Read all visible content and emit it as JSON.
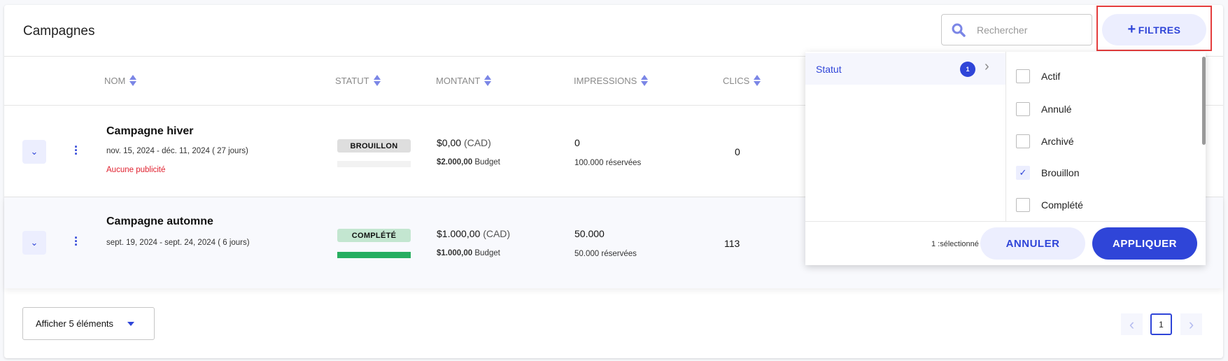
{
  "header": {
    "title": "Campagnes",
    "search_placeholder": "Rechercher",
    "filters_label": "FILTRES"
  },
  "columns": [
    "NOM",
    "STATUT",
    "MONTANT",
    "IMPRESSIONS",
    "CLICS"
  ],
  "rows": [
    {
      "name": "Campagne hiver",
      "dates": "nov. 15, 2024 - déc. 11, 2024 ( 27 jours)",
      "warning": "Aucune publicité",
      "status": "BROUILLON",
      "status_color": "#dedede",
      "progress": 0,
      "amount": "$0,00",
      "currency": "(CAD)",
      "budget_value": "$2.000,00",
      "budget_label": "Budget",
      "impressions": "0",
      "reserved": "100.000 réservées",
      "clicks": "0"
    },
    {
      "name": "Campagne automne",
      "dates": "sept. 19, 2024 - sept. 24, 2024 ( 6 jours)",
      "warning": "",
      "status": "COMPLÉTÉ",
      "status_color": "#c3e6d0",
      "progress": 100,
      "amount": "$1.000,00",
      "currency": "(CAD)",
      "budget_value": "$1.000,00",
      "budget_label": "Budget",
      "impressions": "50.000",
      "reserved": "50.000 réservées",
      "clicks": "113"
    }
  ],
  "filter_panel": {
    "category": "Statut",
    "category_count": "1",
    "options": [
      {
        "label": "Actif",
        "checked": false
      },
      {
        "label": "Annulé",
        "checked": false
      },
      {
        "label": "Archivé",
        "checked": false
      },
      {
        "label": "Brouillon",
        "checked": true
      },
      {
        "label": "Complété",
        "checked": false
      }
    ],
    "selected_text": "1 :sélectionné",
    "cancel_label": "ANNULER",
    "apply_label": "APPLIQUER"
  },
  "footer": {
    "page_size_label": "Afficher 5 éléments",
    "current_page": "1"
  },
  "colors": {
    "accent": "#2f45d8",
    "highlight": "#e43d3d",
    "success_bar": "#27ae60"
  }
}
